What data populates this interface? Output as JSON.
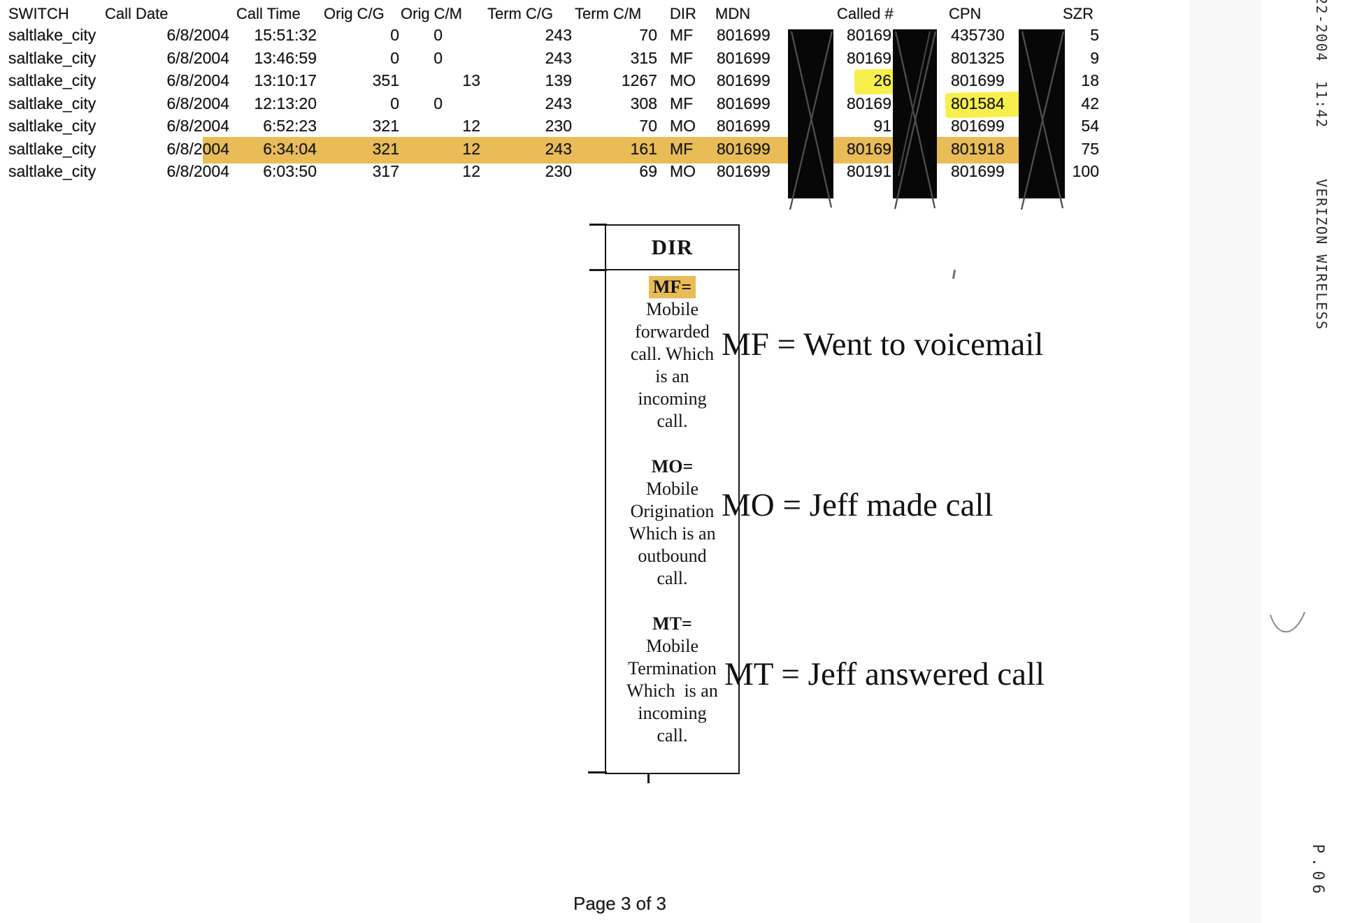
{
  "table": {
    "columns": [
      "SWITCH",
      "Call Date",
      "Call Time",
      "Orig C/G",
      "Orig C/M",
      "Term C/G",
      "Term C/M",
      "DIR",
      "MDN",
      "Called #",
      "CPN",
      "SZR"
    ],
    "rows": [
      {
        "values": [
          "saltlake_city",
          "6/8/2004",
          "15:51:32",
          "0",
          "0",
          "243",
          "70",
          "MF",
          "801699",
          "80169",
          "435730",
          "5"
        ],
        "highlighted": false,
        "highlights": []
      },
      {
        "values": [
          "saltlake_city",
          "6/8/2004",
          "13:46:59",
          "0",
          "0",
          "243",
          "315",
          "MF",
          "801699",
          "80169",
          "801325",
          "9"
        ],
        "highlighted": false,
        "highlights": []
      },
      {
        "values": [
          "saltlake_city",
          "6/8/2004",
          "13:10:17",
          "351",
          "13",
          "139",
          "1267",
          "MO",
          "801699",
          "26",
          "801699",
          "18"
        ],
        "highlighted": false,
        "highlights": [
          {
            "col": 9,
            "color": "yellow"
          }
        ]
      },
      {
        "values": [
          "saltlake_city",
          "6/8/2004",
          "12:13:20",
          "0",
          "0",
          "243",
          "308",
          "MF",
          "801699",
          "80169",
          "801584",
          "42"
        ],
        "highlighted": false,
        "highlights": [
          {
            "col": 10,
            "color": "yellow"
          }
        ]
      },
      {
        "values": [
          "saltlake_city",
          "6/8/2004",
          "6:52:23",
          "321",
          "12",
          "230",
          "70",
          "MO",
          "801699",
          "91",
          "801699",
          "54"
        ],
        "highlighted": false,
        "highlights": []
      },
      {
        "values": [
          "saltlake_city",
          "6/8/2004",
          "6:34:04",
          "321",
          "12",
          "243",
          "161",
          "MF",
          "801699",
          "80169",
          "801918",
          "75"
        ],
        "highlighted": true,
        "highlights": []
      },
      {
        "values": [
          "saltlake_city",
          "6/8/2004",
          "6:03:50",
          "317",
          "12",
          "230",
          "69",
          "MO",
          "801699",
          "80191",
          "801699",
          "100"
        ],
        "highlighted": false,
        "highlights": []
      }
    ],
    "redacted_column_suffixes": [
      "MDN",
      "Called #",
      "CPN"
    ]
  },
  "legend": {
    "title": "DIR",
    "entries": [
      {
        "code": "MF=",
        "code_highlighted": true,
        "lines": [
          "Mobile",
          "forwarded",
          "call. Which",
          "is an",
          "incoming",
          "call."
        ]
      },
      {
        "code": "MO=",
        "code_highlighted": false,
        "lines": [
          "Mobile",
          "Origination",
          "Which is an",
          "outbound",
          "call."
        ]
      },
      {
        "code": "MT=",
        "code_highlighted": false,
        "lines": [
          "Mobile",
          "Termination",
          "Which  is an",
          "incoming",
          "call."
        ]
      }
    ]
  },
  "annotations": [
    {
      "text": "MF = Went to voicemail"
    },
    {
      "text": "MO = Jeff made call"
    },
    {
      "text": "MT = Jeff answered call"
    }
  ],
  "footer": {
    "page": "Page 3 of 3"
  },
  "fax_header": {
    "timestamp": "22-2004  11:42",
    "sender": "VERIZON WIRELESS",
    "page": "P.06"
  },
  "colors": {
    "row_highlight": "#e9bc58",
    "yellow_highlight": "#f7f04c",
    "redaction": "#070707"
  }
}
